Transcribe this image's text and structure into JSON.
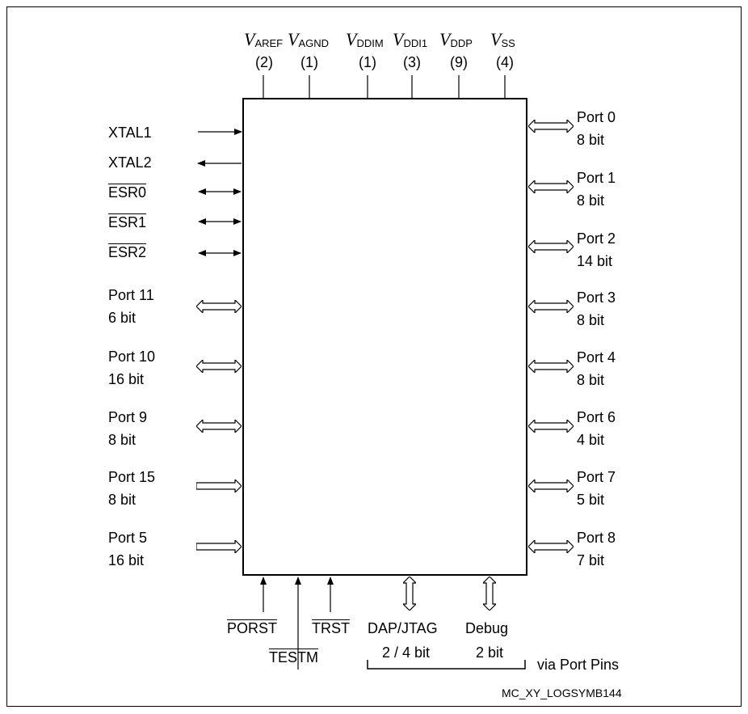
{
  "power": [
    {
      "v": "V",
      "sub": "AREF",
      "count": "(2)"
    },
    {
      "v": "V",
      "sub": "AGND",
      "count": "(1)"
    },
    {
      "v": "V",
      "sub": "DDIM",
      "count": "(1)"
    },
    {
      "v": "V",
      "sub": "DDI1",
      "count": "(3)"
    },
    {
      "v": "V",
      "sub": "DDP",
      "count": "(9)"
    },
    {
      "v": "V",
      "sub": "SS",
      "count": "(4)"
    }
  ],
  "left_signals": [
    "XTAL1",
    "XTAL2",
    "ESR0",
    "ESR1",
    "ESR2"
  ],
  "left_ports": [
    {
      "name": "Port 11",
      "width": "6 bit"
    },
    {
      "name": "Port 10",
      "width": "16 bit"
    },
    {
      "name": "Port 9",
      "width": "8 bit"
    },
    {
      "name": "Port 15",
      "width": "8 bit"
    },
    {
      "name": "Port 5",
      "width": "16 bit"
    }
  ],
  "right_ports": [
    {
      "name": "Port 0",
      "width": "8 bit"
    },
    {
      "name": "Port 1",
      "width": "8 bit"
    },
    {
      "name": "Port 2",
      "width": "14 bit"
    },
    {
      "name": "Port 3",
      "width": "8 bit"
    },
    {
      "name": "Port 4",
      "width": "8 bit"
    },
    {
      "name": "Port 6",
      "width": "4 bit"
    },
    {
      "name": "Port 7",
      "width": "5 bit"
    },
    {
      "name": "Port 8",
      "width": "7 bit"
    }
  ],
  "bottom": {
    "porst": "PORST",
    "testm": "TESTM",
    "trst": "TRST",
    "dap": "DAP/JTAG",
    "dap_width": "2 / 4 bit",
    "debug": "Debug",
    "debug_width": "2 bit",
    "via": "via Port Pins"
  },
  "figure_ref": "MC_XY_LOGSYMB144"
}
